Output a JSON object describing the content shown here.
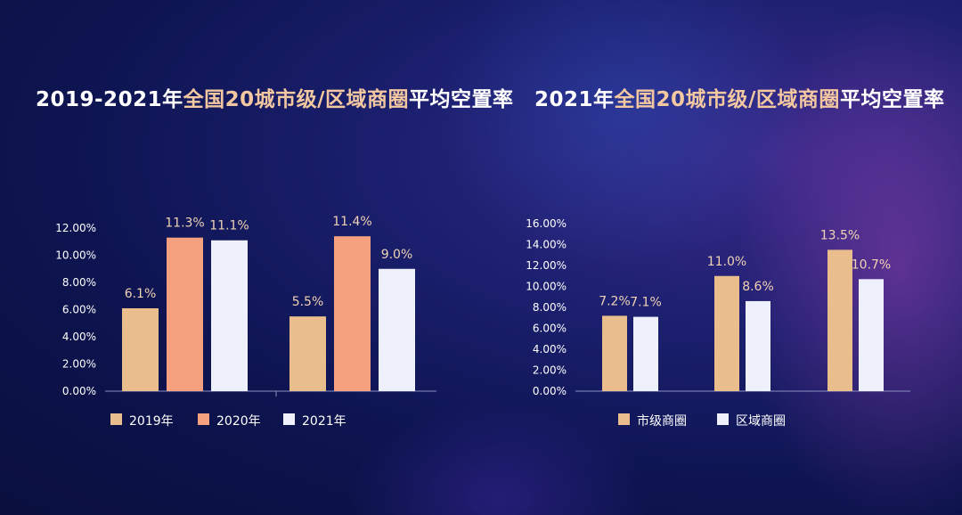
{
  "titles": {
    "left": {
      "part1": "2019-2021年",
      "highlight": "全国20城市级/区域商圈",
      "part2": "平均空置率"
    },
    "right": {
      "part1": "2021年",
      "highlight": "全国20城市级/区域商圈",
      "part2": "平均空置率"
    }
  },
  "colors": {
    "tan": "#e9be8c",
    "salmon": "#f5a07e",
    "white": "#eef0fb",
    "label": "#f0d2b4"
  },
  "chart_data": [
    {
      "type": "bar",
      "title": "2019-2021年全国20城市级/区域商圈平均空置率",
      "groups": 2,
      "series": [
        {
          "name": "2019年",
          "values": [
            6.1,
            5.5
          ],
          "labels": [
            "6.1%",
            "5.5%"
          ],
          "color": "tan"
        },
        {
          "name": "2020年",
          "values": [
            11.3,
            11.4
          ],
          "labels": [
            "11.3%",
            "11.4%"
          ],
          "color": "salmon"
        },
        {
          "name": "2021年",
          "values": [
            11.1,
            9.0
          ],
          "labels": [
            "11.1%",
            "9.0%"
          ],
          "color": "white"
        }
      ],
      "ylim": [
        0,
        12
      ],
      "yticks": [
        "0.00%",
        "2.00%",
        "4.00%",
        "6.00%",
        "8.00%",
        "10.00%",
        "12.00%"
      ],
      "legend": "bottom"
    },
    {
      "type": "bar",
      "title": "2021年全国20城市级/区域商圈平均空置率",
      "groups": 3,
      "series": [
        {
          "name": "市级商圈",
          "values": [
            7.2,
            11.0,
            13.5
          ],
          "labels": [
            "7.2%",
            "11.0%",
            "13.5%"
          ],
          "color": "tan"
        },
        {
          "name": "区域商圈",
          "values": [
            7.1,
            8.6,
            10.7
          ],
          "labels": [
            "7.1%",
            "8.6%",
            "10.7%"
          ],
          "color": "white"
        }
      ],
      "ylim": [
        0,
        16
      ],
      "yticks": [
        "0.00%",
        "2.00%",
        "4.00%",
        "6.00%",
        "8.00%",
        "10.00%",
        "12.00%",
        "14.00%",
        "16.00%"
      ],
      "legend": "bottom"
    }
  ]
}
